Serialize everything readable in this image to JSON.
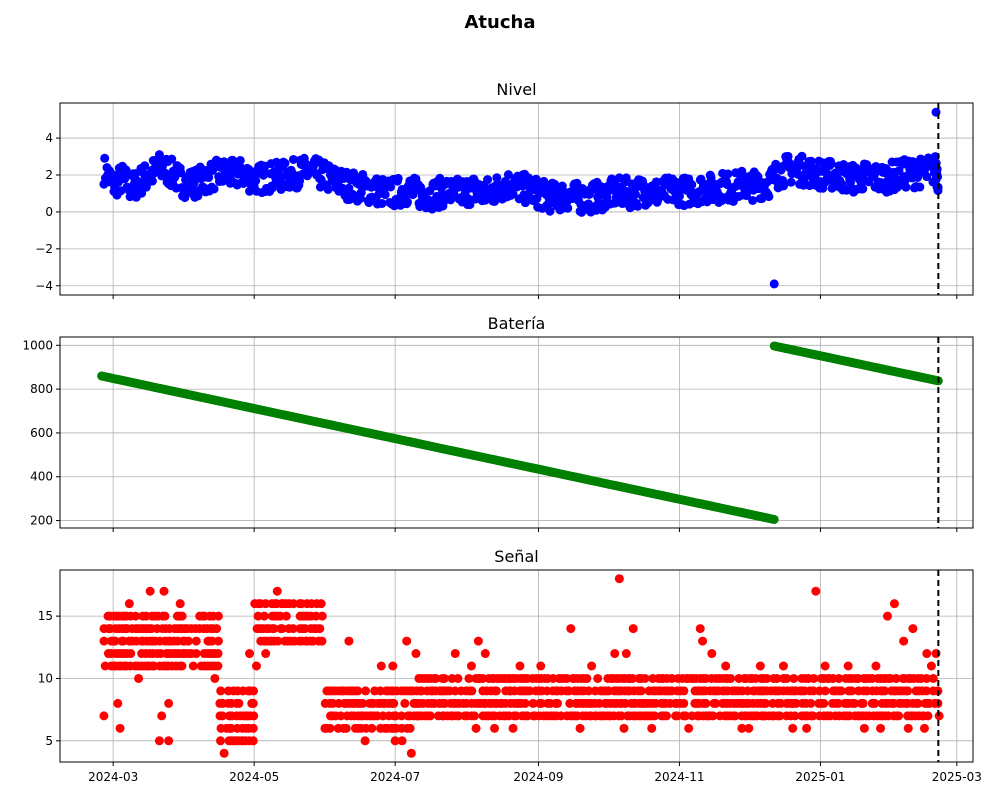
{
  "figure": {
    "title": "Atucha"
  },
  "x_ticks": [
    "2024-03",
    "2024-05",
    "2024-07",
    "2024-09",
    "2024-11",
    "2025-01",
    "2025-03"
  ],
  "chart_data": [
    {
      "type": "scatter",
      "title": "Nivel",
      "color": "#0000ff",
      "xlabel": "",
      "ylabel": "",
      "xlim": [
        "2024-02-07",
        "2025-03-08"
      ],
      "ylim": [
        -4.5,
        5.9
      ],
      "yticks": [
        -4,
        -2,
        0,
        2,
        4
      ],
      "ytick_labels": [
        "−4",
        "−2",
        "0",
        "2",
        "4"
      ],
      "grid": true,
      "reference_line": {
        "date": "2025-02-21",
        "style": "dashed",
        "color": "#000000"
      },
      "points": [
        [
          "2024-02-26",
          2.3
        ],
        [
          "2024-03-01",
          1.5
        ],
        [
          "2024-03-05",
          1.8
        ],
        [
          "2024-03-09",
          1.3
        ],
        [
          "2024-03-13",
          1.7
        ],
        [
          "2024-03-17",
          2.0
        ],
        [
          "2024-03-21",
          2.4
        ],
        [
          "2024-03-25",
          2.2
        ],
        [
          "2024-03-29",
          1.8
        ],
        [
          "2024-04-02",
          1.5
        ],
        [
          "2024-04-06",
          1.6
        ],
        [
          "2024-04-10",
          1.8
        ],
        [
          "2024-04-14",
          2.0
        ],
        [
          "2024-04-18",
          2.1
        ],
        [
          "2024-04-22",
          2.0
        ],
        [
          "2024-04-26",
          2.1
        ],
        [
          "2024-04-30",
          1.8
        ],
        [
          "2024-05-04",
          1.8
        ],
        [
          "2024-05-08",
          1.9
        ],
        [
          "2024-05-12",
          1.9
        ],
        [
          "2024-05-16",
          2.0
        ],
        [
          "2024-05-20",
          2.1
        ],
        [
          "2024-05-24",
          2.2
        ],
        [
          "2024-05-28",
          2.1
        ],
        [
          "2024-06-01",
          1.9
        ],
        [
          "2024-06-05",
          1.7
        ],
        [
          "2024-06-09",
          1.5
        ],
        [
          "2024-06-13",
          1.4
        ],
        [
          "2024-06-17",
          1.3
        ],
        [
          "2024-06-21",
          1.2
        ],
        [
          "2024-06-25",
          1.1
        ],
        [
          "2024-06-29",
          1.0
        ],
        [
          "2024-07-03",
          1.1
        ],
        [
          "2024-07-07",
          1.2
        ],
        [
          "2024-07-11",
          1.0
        ],
        [
          "2024-07-15",
          0.9
        ],
        [
          "2024-07-19",
          1.0
        ],
        [
          "2024-07-23",
          1.1
        ],
        [
          "2024-07-27",
          1.0
        ],
        [
          "2024-07-31",
          1.1
        ],
        [
          "2024-08-04",
          1.2
        ],
        [
          "2024-08-08",
          1.0
        ],
        [
          "2024-08-12",
          1.1
        ],
        [
          "2024-08-16",
          1.4
        ],
        [
          "2024-08-20",
          1.5
        ],
        [
          "2024-08-24",
          1.3
        ],
        [
          "2024-08-28",
          1.2
        ],
        [
          "2024-09-01",
          1.0
        ],
        [
          "2024-09-05",
          0.8
        ],
        [
          "2024-09-09",
          0.8
        ],
        [
          "2024-09-13",
          0.9
        ],
        [
          "2024-09-17",
          0.8
        ],
        [
          "2024-09-21",
          0.7
        ],
        [
          "2024-09-25",
          0.8
        ],
        [
          "2024-09-29",
          0.9
        ],
        [
          "2024-10-03",
          1.0
        ],
        [
          "2024-10-07",
          1.1
        ],
        [
          "2024-10-11",
          1.0
        ],
        [
          "2024-10-15",
          1.1
        ],
        [
          "2024-10-19",
          1.2
        ],
        [
          "2024-10-23",
          1.0
        ],
        [
          "2024-10-27",
          1.1
        ],
        [
          "2024-10-31",
          1.2
        ],
        [
          "2024-11-04",
          1.1
        ],
        [
          "2024-11-08",
          1.2
        ],
        [
          "2024-11-12",
          1.3
        ],
        [
          "2024-11-16",
          1.2
        ],
        [
          "2024-11-20",
          1.4
        ],
        [
          "2024-11-24",
          1.3
        ],
        [
          "2024-11-28",
          1.5
        ],
        [
          "2024-12-02",
          1.4
        ],
        [
          "2024-12-06",
          1.5
        ],
        [
          "2024-12-10",
          1.6
        ],
        [
          "2024-12-14",
          2.1
        ],
        [
          "2024-12-18",
          2.3
        ],
        [
          "2024-12-22",
          2.3
        ],
        [
          "2024-12-26",
          2.2
        ],
        [
          "2024-12-30",
          2.1
        ],
        [
          "2025-01-03",
          2.0
        ],
        [
          "2025-01-07",
          2.0
        ],
        [
          "2025-01-11",
          1.9
        ],
        [
          "2025-01-15",
          1.8
        ],
        [
          "2025-01-19",
          1.9
        ],
        [
          "2025-01-23",
          1.9
        ],
        [
          "2025-01-27",
          1.8
        ],
        [
          "2025-01-31",
          1.9
        ],
        [
          "2025-02-04",
          2.0
        ],
        [
          "2025-02-08",
          2.1
        ],
        [
          "2025-02-12",
          2.1
        ],
        [
          "2025-02-16",
          2.2
        ],
        [
          "2025-02-20",
          2.3
        ],
        [
          "2025-02-21",
          1.8
        ]
      ],
      "outliers": [
        [
          "2024-12-12",
          -3.9
        ],
        [
          "2025-02-20",
          5.4
        ]
      ]
    },
    {
      "type": "scatter",
      "title": "Batería",
      "color": "#008000",
      "xlabel": "",
      "ylabel": "",
      "xlim": [
        "2024-02-07",
        "2025-03-08"
      ],
      "ylim": [
        166,
        1038
      ],
      "yticks": [
        200,
        400,
        600,
        800,
        1000
      ],
      "ytick_labels": [
        "200",
        "400",
        "600",
        "800",
        "1000"
      ],
      "grid": true,
      "reference_line": {
        "date": "2025-02-21",
        "style": "dashed",
        "color": "#000000"
      },
      "segments": [
        {
          "start": [
            "2024-02-25",
            860
          ],
          "end": [
            "2024-12-12",
            205
          ]
        },
        {
          "start": [
            "2024-12-12",
            997
          ],
          "end": [
            "2025-02-21",
            838
          ]
        }
      ]
    },
    {
      "type": "scatter",
      "title": "Señal",
      "color": "#ff0000",
      "xlabel": "",
      "ylabel": "",
      "xlim": [
        "2024-02-07",
        "2025-03-08"
      ],
      "ylim": [
        3.3,
        18.7
      ],
      "yticks": [
        5,
        10,
        15
      ],
      "ytick_labels": [
        "5",
        "10",
        "15"
      ],
      "grid": true,
      "reference_line": {
        "date": "2025-02-21",
        "style": "dashed",
        "color": "#000000"
      },
      "bands": [
        {
          "from": "2024-02-26",
          "to": "2024-04-16",
          "min": 11,
          "max": 15
        },
        {
          "from": "2024-04-16",
          "to": "2024-05-01",
          "min": 5,
          "max": 9
        },
        {
          "from": "2024-05-01",
          "to": "2024-05-31",
          "min": 13,
          "max": 16
        },
        {
          "from": "2024-05-31",
          "to": "2024-07-10",
          "min": 6,
          "max": 9
        },
        {
          "from": "2024-07-10",
          "to": "2025-02-21",
          "min": 7,
          "max": 10
        }
      ],
      "points": [
        [
          "2024-02-26",
          7
        ],
        [
          "2024-02-28",
          14
        ],
        [
          "2024-03-03",
          8
        ],
        [
          "2024-03-04",
          6
        ],
        [
          "2024-03-08",
          16
        ],
        [
          "2024-03-12",
          10
        ],
        [
          "2024-03-17",
          17
        ],
        [
          "2024-03-23",
          17
        ],
        [
          "2024-03-21",
          5
        ],
        [
          "2024-03-22",
          7
        ],
        [
          "2024-03-25",
          8
        ],
        [
          "2024-03-25",
          5
        ],
        [
          "2024-03-30",
          16
        ],
        [
          "2024-04-14",
          10
        ],
        [
          "2024-04-18",
          4
        ],
        [
          "2024-04-22",
          5
        ],
        [
          "2024-04-26",
          5
        ],
        [
          "2024-04-29",
          12
        ],
        [
          "2024-05-02",
          11
        ],
        [
          "2024-05-06",
          12
        ],
        [
          "2024-05-11",
          17
        ],
        [
          "2024-05-13",
          16
        ],
        [
          "2024-05-30",
          16
        ],
        [
          "2024-06-11",
          13
        ],
        [
          "2024-06-18",
          5
        ],
        [
          "2024-06-25",
          11
        ],
        [
          "2024-06-30",
          11
        ],
        [
          "2024-07-01",
          5
        ],
        [
          "2024-07-04",
          5
        ],
        [
          "2024-07-06",
          13
        ],
        [
          "2024-07-08",
          4
        ],
        [
          "2024-07-10",
          12
        ],
        [
          "2024-07-27",
          12
        ],
        [
          "2024-08-03",
          11
        ],
        [
          "2024-08-06",
          13
        ],
        [
          "2024-08-09",
          12
        ],
        [
          "2024-08-05",
          6
        ],
        [
          "2024-08-13",
          6
        ],
        [
          "2024-08-21",
          6
        ],
        [
          "2024-08-24",
          11
        ],
        [
          "2024-09-02",
          11
        ],
        [
          "2024-09-15",
          14
        ],
        [
          "2024-09-19",
          6
        ],
        [
          "2024-09-24",
          11
        ],
        [
          "2024-10-04",
          12
        ],
        [
          "2024-10-06",
          18
        ],
        [
          "2024-10-09",
          12
        ],
        [
          "2024-10-12",
          14
        ],
        [
          "2024-10-08",
          6
        ],
        [
          "2024-10-20",
          6
        ],
        [
          "2024-11-05",
          6
        ],
        [
          "2024-11-10",
          14
        ],
        [
          "2024-11-11",
          13
        ],
        [
          "2024-11-15",
          12
        ],
        [
          "2024-11-21",
          11
        ],
        [
          "2024-11-28",
          6
        ],
        [
          "2024-12-01",
          6
        ],
        [
          "2024-12-06",
          11
        ],
        [
          "2024-12-16",
          11
        ],
        [
          "2024-12-20",
          6
        ],
        [
          "2024-12-26",
          6
        ],
        [
          "2024-12-30",
          17
        ],
        [
          "2025-01-03",
          11
        ],
        [
          "2025-01-13",
          11
        ],
        [
          "2025-01-20",
          6
        ],
        [
          "2025-01-25",
          11
        ],
        [
          "2025-01-27",
          6
        ],
        [
          "2025-01-30",
          15
        ],
        [
          "2025-02-02",
          16
        ],
        [
          "2025-02-06",
          13
        ],
        [
          "2025-02-10",
          14
        ],
        [
          "2025-02-08",
          6
        ],
        [
          "2025-02-15",
          6
        ],
        [
          "2025-02-16",
          12
        ],
        [
          "2025-02-18",
          11
        ],
        [
          "2025-02-20",
          12
        ]
      ]
    }
  ]
}
